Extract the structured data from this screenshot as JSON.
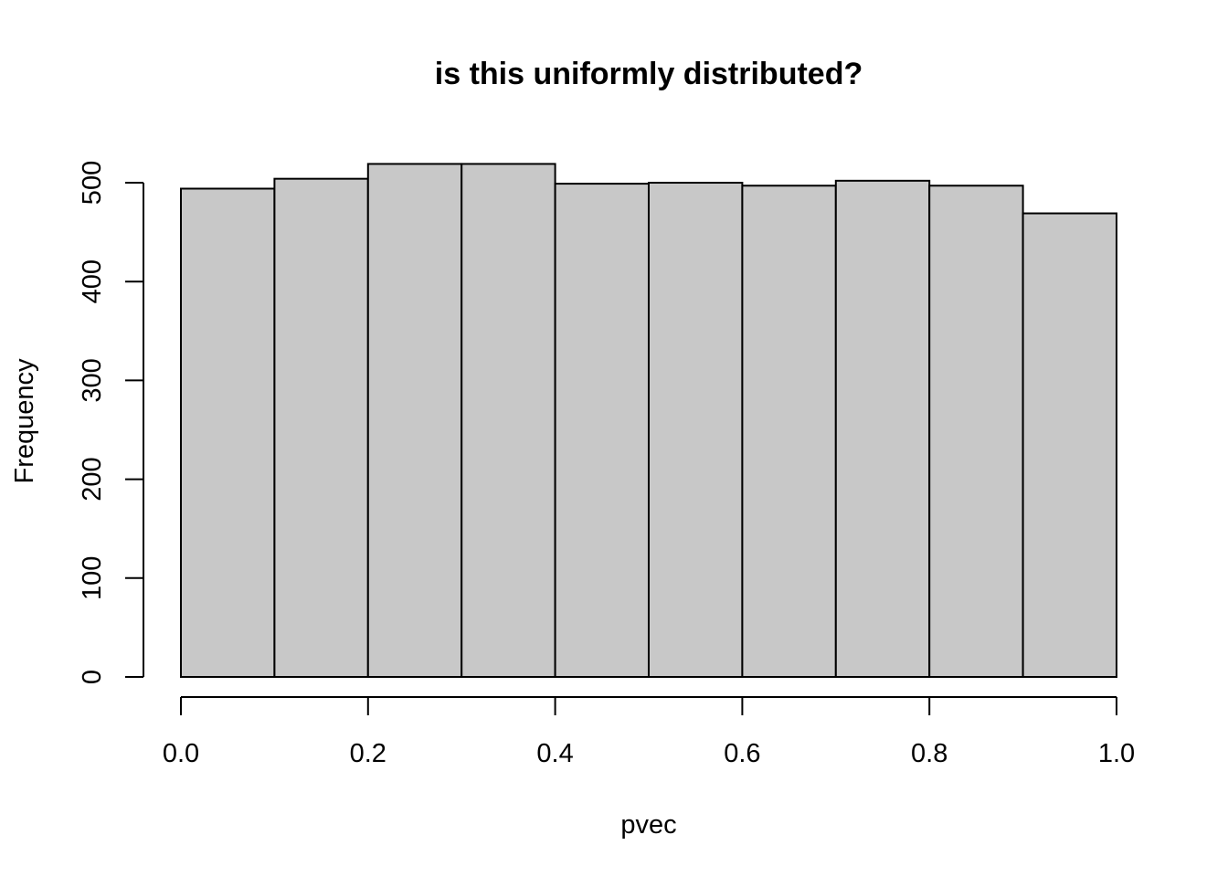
{
  "chart_data": {
    "type": "bar",
    "title": "is this uniformly distributed?",
    "xlabel": "pvec",
    "ylabel": "Frequency",
    "bin_edges": [
      0.0,
      0.1,
      0.2,
      0.3,
      0.4,
      0.5,
      0.6,
      0.7,
      0.8,
      0.9,
      1.0
    ],
    "values": [
      494,
      504,
      519,
      519,
      499,
      500,
      497,
      502,
      497,
      469
    ],
    "xlim": [
      0.0,
      1.0
    ],
    "ylim": [
      0,
      500
    ],
    "x_ticks": [
      0.0,
      0.2,
      0.4,
      0.6,
      0.8,
      1.0
    ],
    "x_tick_labels": [
      "0.0",
      "0.2",
      "0.4",
      "0.6",
      "0.8",
      "1.0"
    ],
    "y_ticks": [
      0,
      100,
      200,
      300,
      400,
      500
    ],
    "y_tick_labels": [
      "0",
      "100",
      "200",
      "300",
      "400",
      "500"
    ],
    "bar_color": "#c8c8c8",
    "grid": false,
    "legend": "none"
  }
}
